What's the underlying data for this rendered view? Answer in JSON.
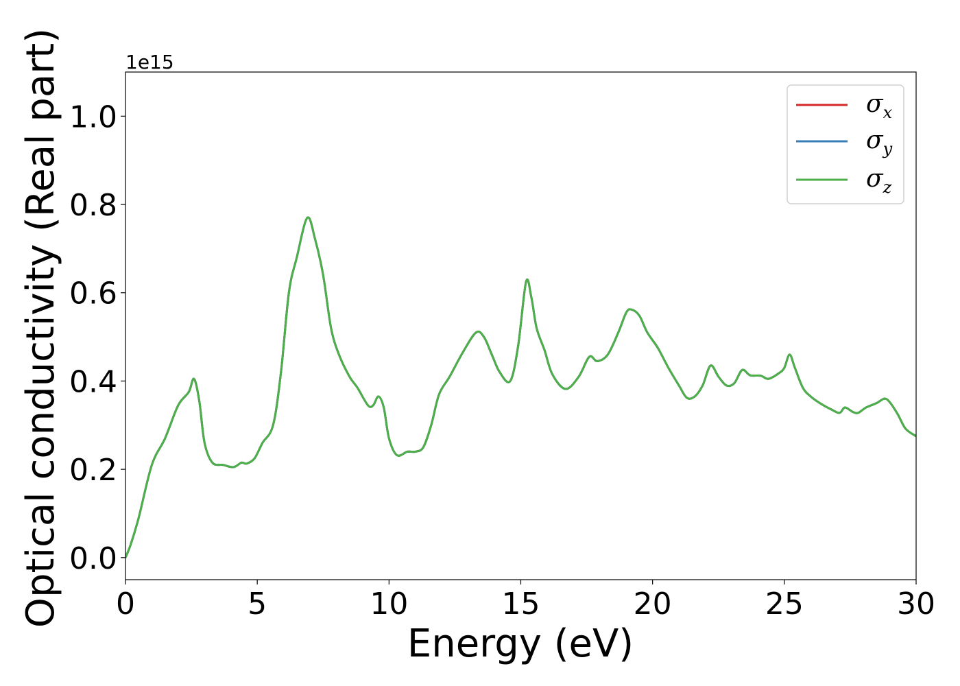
{
  "chart_data": {
    "type": "line",
    "xlabel": "Energy (eV)",
    "ylabel": "Optical conductivity (Real part)",
    "y_offset_label": "1e15",
    "xlim": [
      0,
      30
    ],
    "ylim": [
      -0.05,
      1.1
    ],
    "x_ticks": [
      0,
      5,
      10,
      15,
      20,
      25,
      30
    ],
    "x_tick_labels": [
      "0",
      "5",
      "10",
      "15",
      "20",
      "25",
      "30"
    ],
    "y_ticks": [
      0.0,
      0.2,
      0.4,
      0.6,
      0.8,
      1.0
    ],
    "y_tick_labels": [
      "0.0",
      "0.2",
      "0.4",
      "0.6",
      "0.8",
      "1.0"
    ],
    "grid": false,
    "legend_position": "top-right",
    "series": [
      {
        "name": "σx",
        "symbol": "σ",
        "subscript": "x",
        "color": "#d62728"
      },
      {
        "name": "σy",
        "symbol": "σ",
        "subscript": "y",
        "color": "#377eb8"
      },
      {
        "name": "σz",
        "symbol": "σ",
        "subscript": "z",
        "color": "#4daf4a"
      }
    ],
    "x": [
      0,
      0.2,
      0.5,
      1.0,
      1.5,
      2.0,
      2.4,
      2.6,
      2.8,
      3.0,
      3.3,
      3.7,
      4.1,
      4.4,
      4.6,
      4.9,
      5.2,
      5.6,
      5.9,
      6.2,
      6.5,
      6.9,
      7.2,
      7.5,
      7.8,
      8.1,
      8.5,
      8.8,
      9.2,
      9.4,
      9.6,
      9.8,
      10.0,
      10.3,
      10.7,
      11.0,
      11.3,
      11.6,
      11.9,
      12.3,
      12.8,
      13.3,
      13.6,
      13.9,
      14.2,
      14.6,
      14.9,
      15.2,
      15.4,
      15.6,
      15.9,
      16.2,
      16.7,
      17.2,
      17.6,
      17.9,
      18.3,
      18.7,
      19.0,
      19.2,
      19.5,
      19.8,
      20.2,
      20.6,
      21.0,
      21.3,
      21.6,
      21.9,
      22.2,
      22.5,
      22.8,
      23.1,
      23.4,
      23.7,
      24.1,
      24.4,
      24.8,
      25.0,
      25.2,
      25.4,
      25.7,
      26.0,
      26.4,
      26.8,
      27.1,
      27.3,
      27.6,
      27.8,
      28.1,
      28.5,
      28.8,
      29.0,
      29.3,
      29.6,
      30.0
    ],
    "y": [
      0.0,
      0.03,
      0.09,
      0.21,
      0.27,
      0.345,
      0.375,
      0.405,
      0.355,
      0.26,
      0.215,
      0.21,
      0.205,
      0.215,
      0.213,
      0.225,
      0.26,
      0.3,
      0.42,
      0.6,
      0.68,
      0.77,
      0.72,
      0.64,
      0.52,
      0.46,
      0.41,
      0.385,
      0.345,
      0.345,
      0.365,
      0.34,
      0.27,
      0.232,
      0.24,
      0.24,
      0.25,
      0.3,
      0.37,
      0.41,
      0.465,
      0.51,
      0.5,
      0.46,
      0.42,
      0.4,
      0.48,
      0.625,
      0.59,
      0.52,
      0.47,
      0.415,
      0.382,
      0.41,
      0.455,
      0.445,
      0.46,
      0.51,
      0.555,
      0.562,
      0.548,
      0.51,
      0.475,
      0.43,
      0.39,
      0.362,
      0.365,
      0.39,
      0.435,
      0.41,
      0.39,
      0.395,
      0.425,
      0.413,
      0.412,
      0.405,
      0.418,
      0.43,
      0.46,
      0.43,
      0.385,
      0.365,
      0.348,
      0.335,
      0.328,
      0.34,
      0.33,
      0.328,
      0.34,
      0.35,
      0.36,
      0.352,
      0.325,
      0.292,
      0.275
    ]
  }
}
